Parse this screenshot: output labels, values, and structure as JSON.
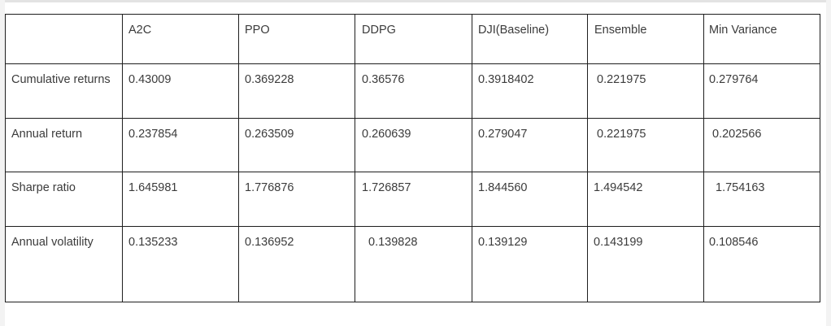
{
  "table": {
    "headers": [
      "",
      "A2C",
      "PPO",
      "DDPG",
      "DJI(Baseline)",
      "Ensemble",
      "Min Variance"
    ],
    "rows": [
      {
        "label": "Cumulative returns",
        "values": [
          "0.43009",
          "0.369228",
          "0.36576",
          "0.3918402",
          "0.221975",
          "0.279764"
        ]
      },
      {
        "label": "Annual return",
        "values": [
          "0.237854",
          "0.263509",
          "0.260639",
          "0.279047",
          "0.221975",
          "0.202566"
        ]
      },
      {
        "label": "Sharpe ratio",
        "values": [
          "1.645981",
          "1.776876",
          "1.726857",
          "1.844560",
          "1.494542",
          "1.754163"
        ]
      },
      {
        "label": "Annual volatility",
        "values": [
          "0.135233",
          "0.136952",
          "0.139828",
          "0.139129",
          "0.143199",
          "0.108546"
        ]
      }
    ]
  }
}
